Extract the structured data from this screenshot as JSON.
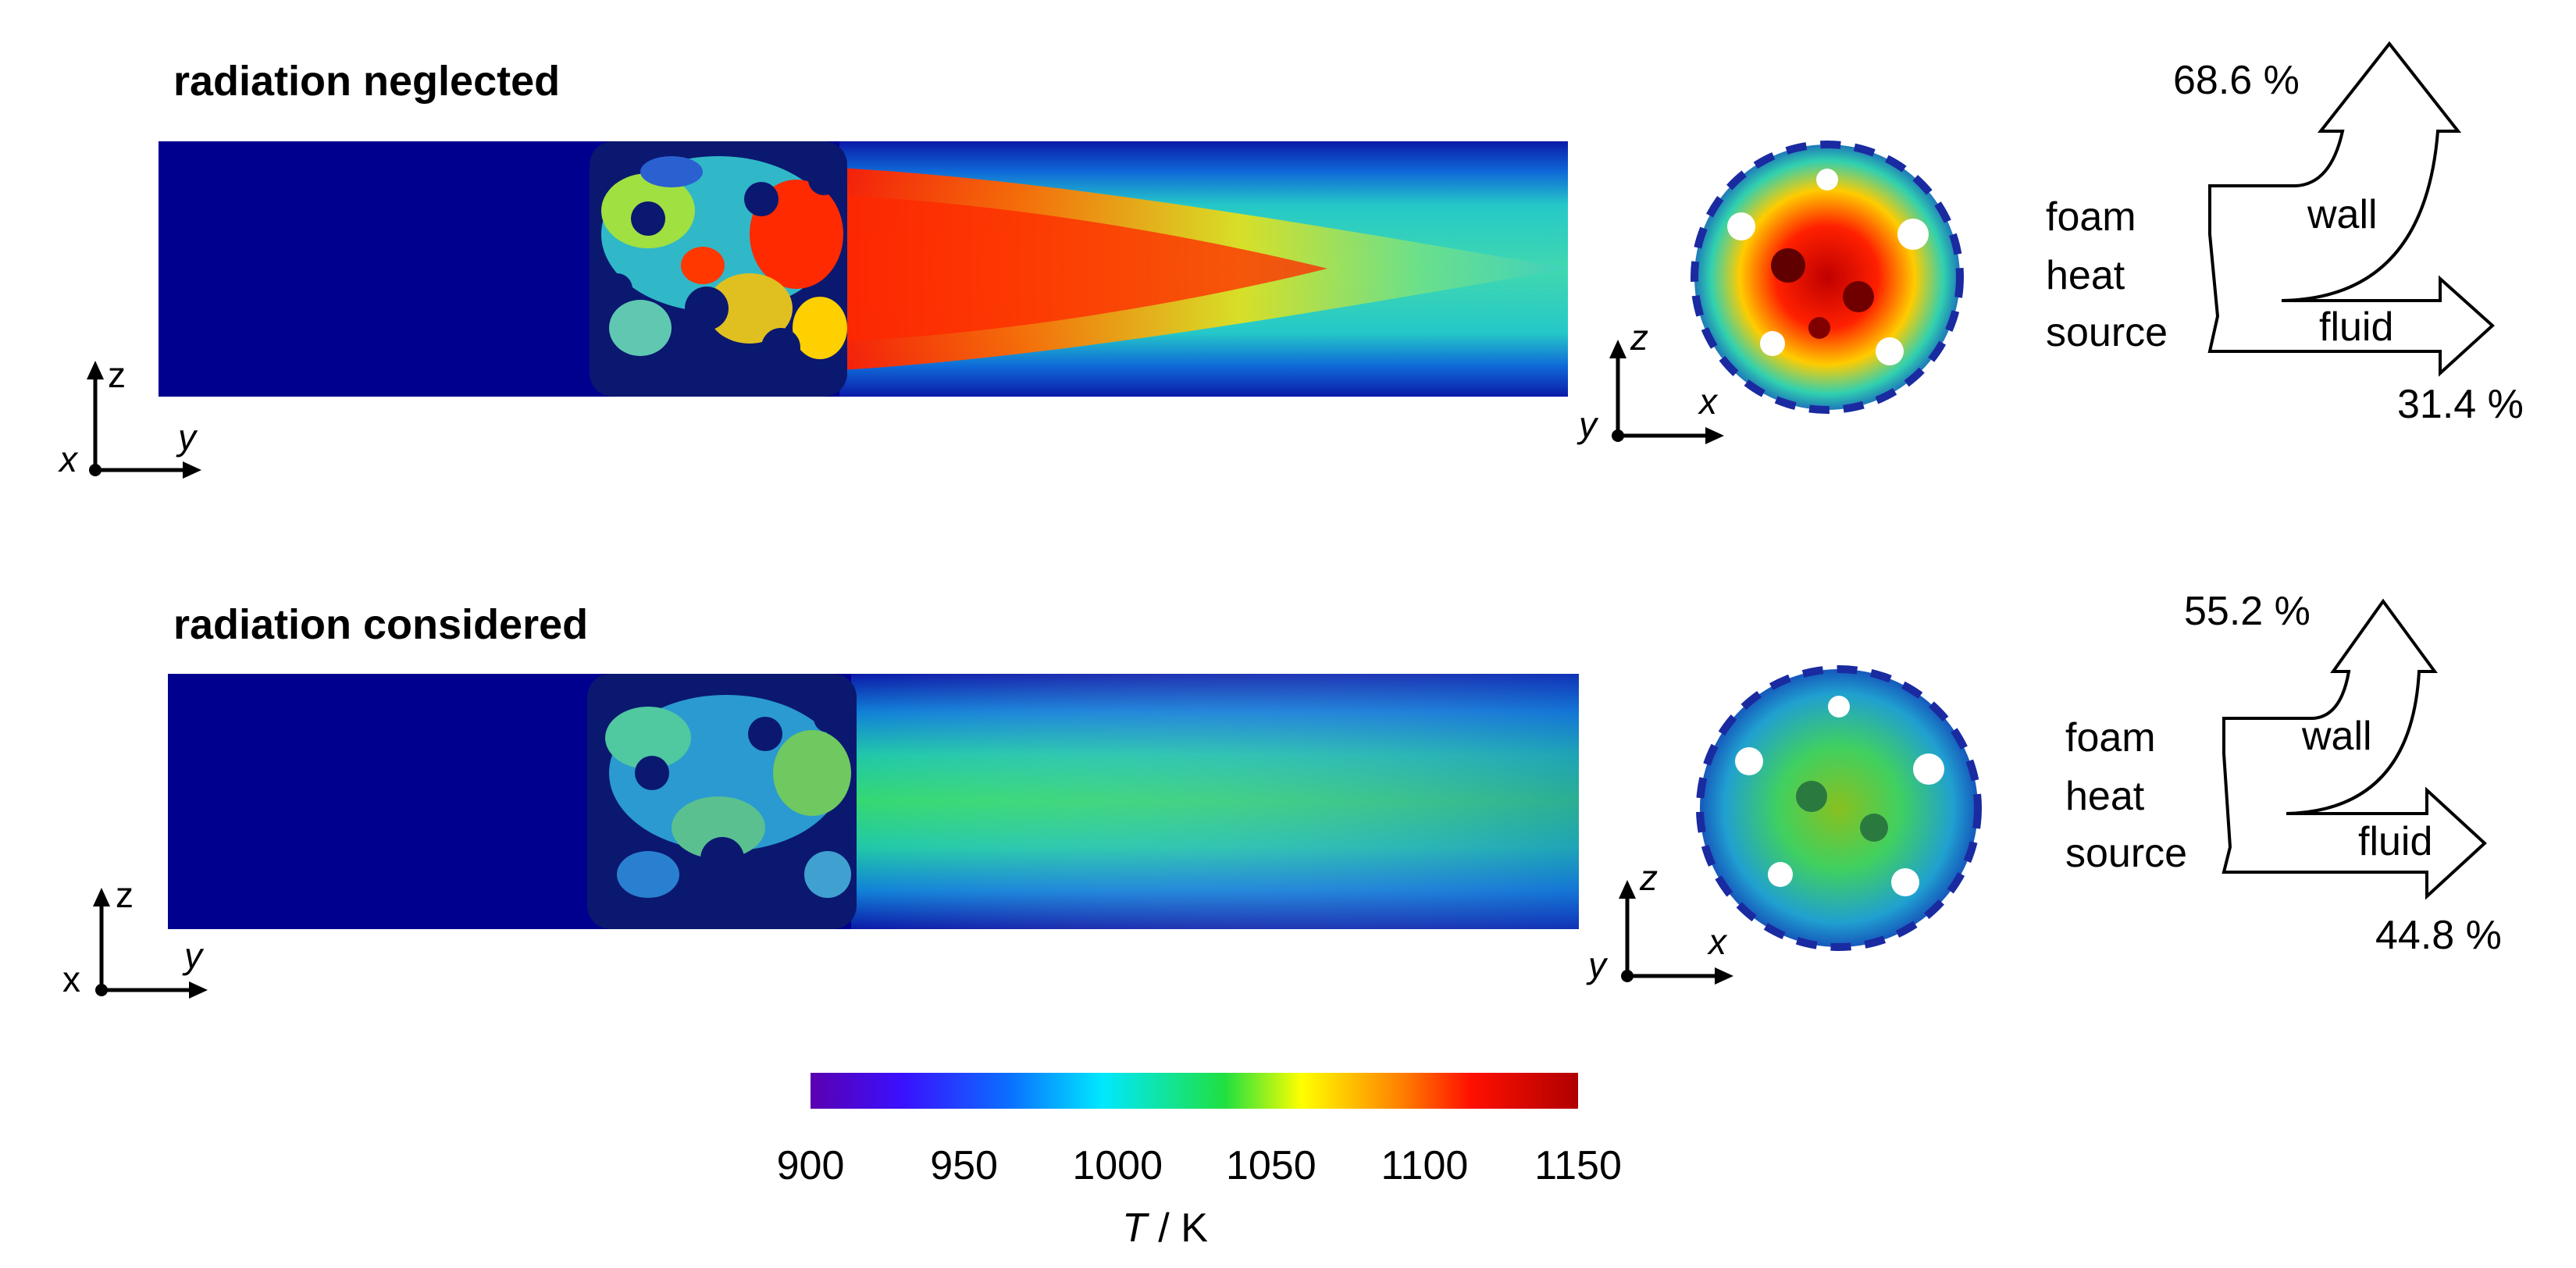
{
  "panels": [
    {
      "title": "radiation neglected",
      "axes_side": {
        "vertical": "z",
        "horizontal": "y",
        "out_of_plane": "x"
      },
      "axes_front": {
        "vertical": "z",
        "horizontal": "x",
        "out_of_plane": "y"
      },
      "balance": {
        "source_label_lines": [
          "foam",
          "heat",
          "source"
        ],
        "wall_label": "wall",
        "fluid_label": "fluid",
        "wall_percent": "68.6 %",
        "fluid_percent": "31.4 %",
        "wall_share": 0.686,
        "fluid_share": 0.314
      }
    },
    {
      "title": "radiation considered",
      "axes_side": {
        "vertical": "z",
        "horizontal": "y",
        "out_of_plane": "x"
      },
      "axes_front": {
        "vertical": "z",
        "horizontal": "x",
        "out_of_plane": "y"
      },
      "balance": {
        "source_label_lines": [
          "foam",
          "heat",
          "source"
        ],
        "wall_label": "wall",
        "fluid_label": "fluid",
        "wall_percent": "55.2 %",
        "fluid_percent": "44.8 %",
        "wall_share": 0.552,
        "fluid_share": 0.448
      }
    }
  ],
  "colorbar": {
    "ticks": [
      "900",
      "950",
      "1000",
      "1050",
      "1100",
      "1150"
    ],
    "min": 900,
    "max": 1150,
    "label_symbol": "T",
    "label_unit": " / K",
    "colors": [
      "#5b00b0",
      "#1a40ff",
      "#00dcff",
      "#20e040",
      "#ffff00",
      "#ff8000",
      "#ff1000",
      "#b00000"
    ]
  }
}
